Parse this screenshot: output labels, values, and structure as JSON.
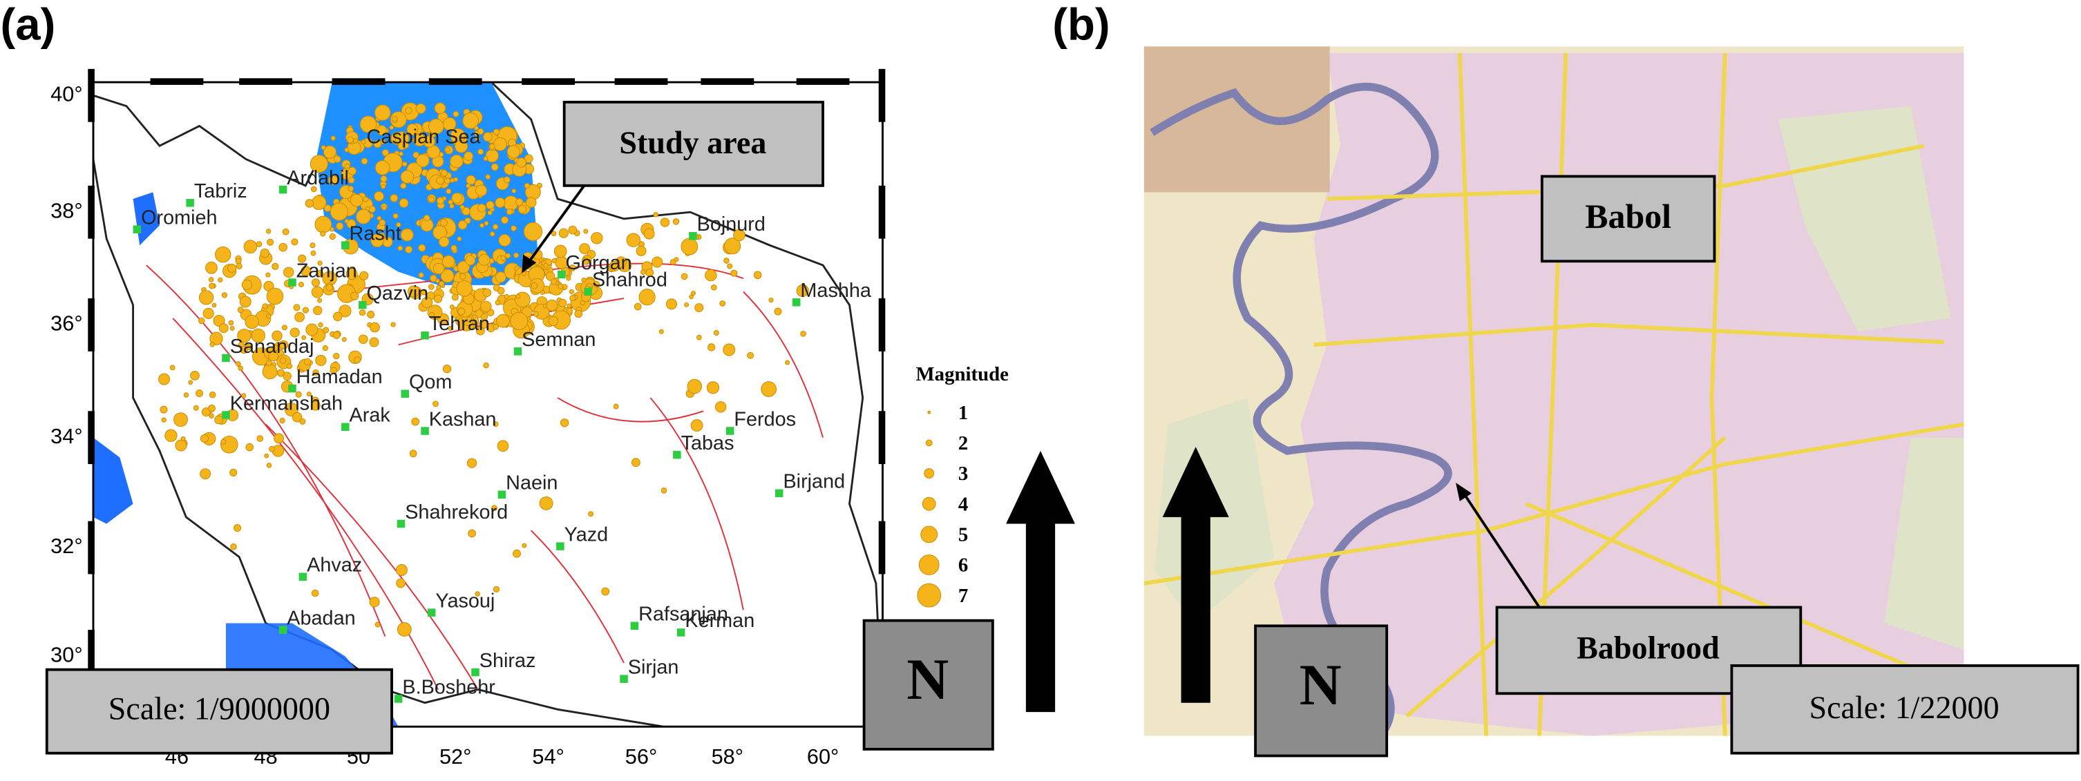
{
  "panel_a": {
    "label": "(a)",
    "lat_ticks": [
      "40°",
      "38°",
      "36°",
      "34°",
      "32°",
      "30°"
    ],
    "lon_ticks": [
      "46",
      "48",
      "50",
      "52°",
      "54°",
      "56°",
      "58°",
      "60°"
    ],
    "places": [
      "Caspian Sea",
      "Tabriz",
      "Oromieh",
      "Ardabil",
      "Rasht",
      "Zanjan",
      "Qazvin",
      "Tehran",
      "Gorgan",
      "Shahrod",
      "Bojnurd",
      "Mashha",
      "Semnan",
      "Sanandaj",
      "Hamadan",
      "Qom",
      "Kermanshah",
      "Arak",
      "Kashan",
      "Ferdos",
      "Tabas",
      "Birjand",
      "Naein",
      "Shahrekord",
      "Yazd",
      "Ahvaz",
      "Yasouj",
      "Abadan",
      "Rafsanjan",
      "Kerman",
      "Shiraz",
      "Sirjan",
      "B.Boshehr"
    ],
    "legend": {
      "title": "Magnitude",
      "items": [
        1,
        2,
        3,
        4,
        5,
        6,
        7
      ]
    },
    "study_area": "Study area",
    "scale": "Scale: 1/9000000",
    "north": "N"
  },
  "panel_b": {
    "label": "(b)",
    "city": "Babol",
    "river": "Babolrood",
    "north": "N",
    "scale": "Scale: 1/22000"
  }
}
